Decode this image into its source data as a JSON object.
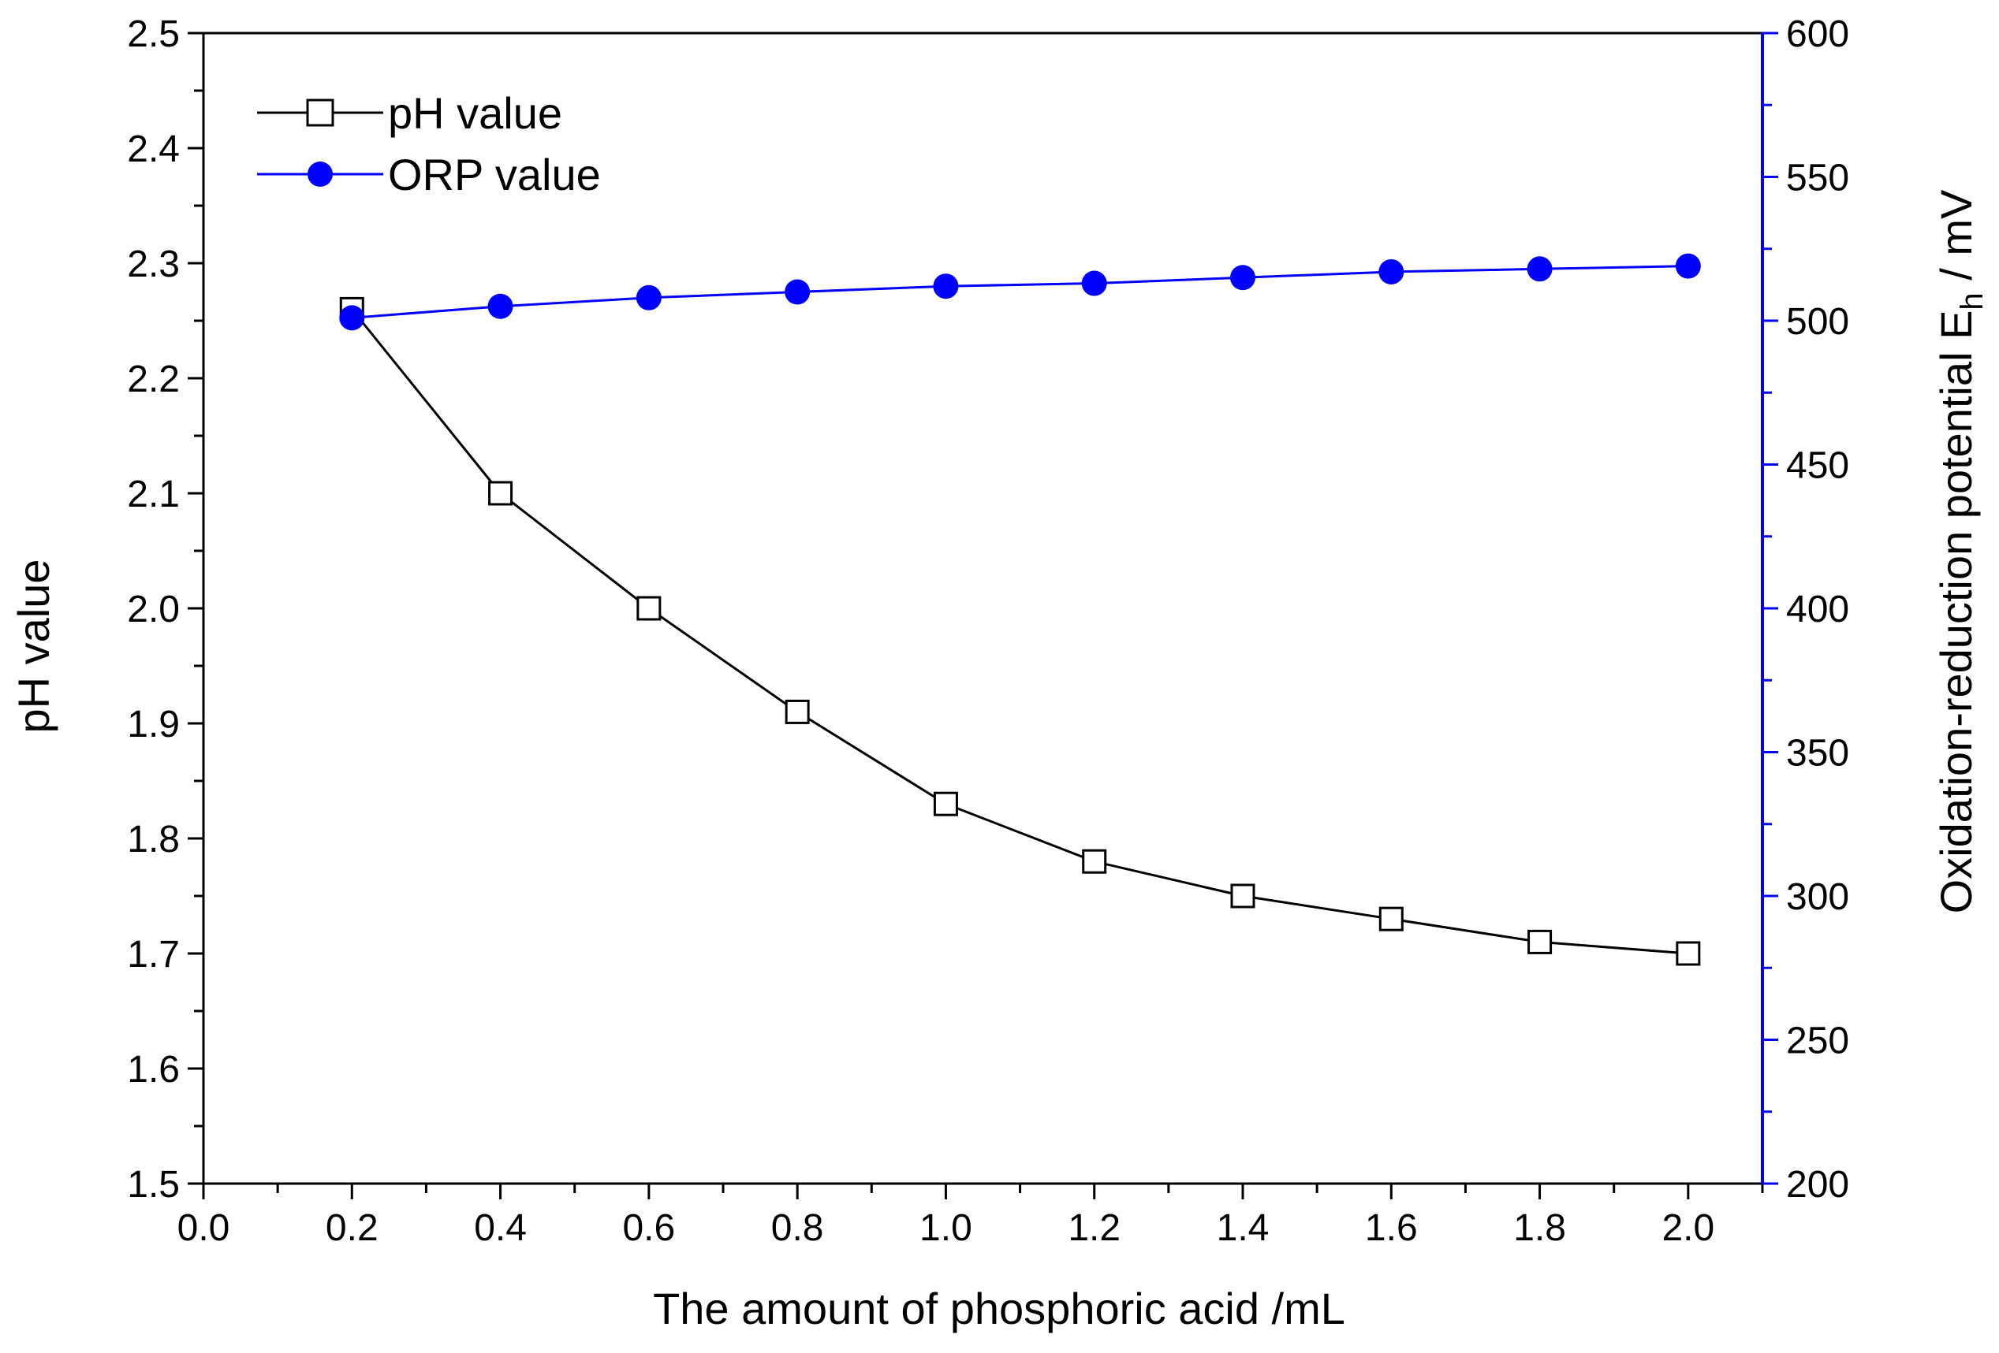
{
  "chart_data": {
    "type": "line",
    "title": "",
    "xlabel": "The amount of phosphoric acid /mL",
    "ylabel": "pH value",
    "y2label": "Oxidation-reduction potential E",
    "y2label_sub": "h",
    "y2label_unit": " / mV",
    "xlim": [
      0.0,
      2.1
    ],
    "ylim": [
      1.5,
      2.5
    ],
    "y2lim": [
      200,
      600
    ],
    "x_ticks": [
      "0.0",
      "0.2",
      "0.4",
      "0.6",
      "0.8",
      "1.0",
      "1.2",
      "1.4",
      "1.6",
      "1.8",
      "2.0"
    ],
    "y_ticks": [
      "1.5",
      "1.6",
      "1.7",
      "1.8",
      "1.9",
      "2.0",
      "2.1",
      "2.2",
      "2.3",
      "2.4",
      "2.5"
    ],
    "y2_ticks": [
      "200",
      "250",
      "300",
      "350",
      "400",
      "450",
      "500",
      "550",
      "600"
    ],
    "grid": false,
    "legend_position": "top-left",
    "x": [
      0.2,
      0.4,
      0.6,
      0.8,
      1.0,
      1.2,
      1.4,
      1.6,
      1.8,
      2.0
    ],
    "series": [
      {
        "name": "pH value",
        "axis": "left",
        "marker": "open-square",
        "color": "#000000",
        "values": [
          2.26,
          2.1,
          2.0,
          1.91,
          1.83,
          1.78,
          1.75,
          1.73,
          1.71,
          1.7
        ]
      },
      {
        "name": "ORP value",
        "axis": "right",
        "marker": "filled-circle",
        "color": "#0000ff",
        "values": [
          501,
          505,
          508,
          510,
          512,
          513,
          515,
          517,
          518,
          519
        ]
      }
    ]
  }
}
